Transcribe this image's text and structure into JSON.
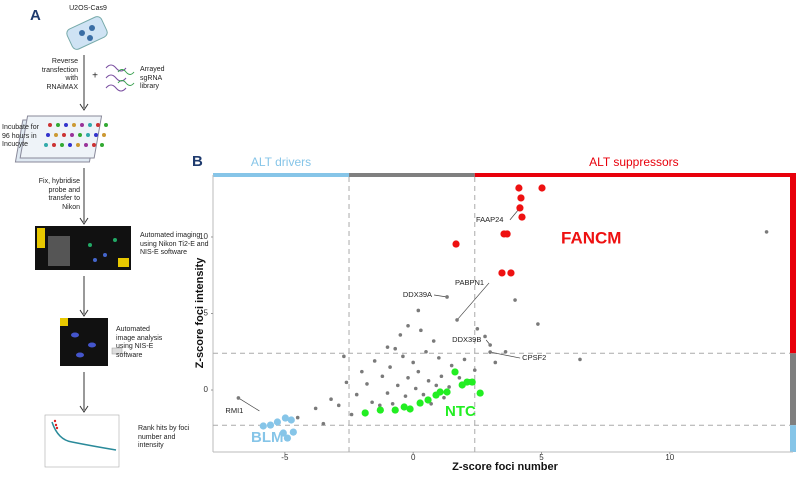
{
  "panel_a": {
    "label": "A",
    "cell_line": "U2OS-Cas9",
    "plus": "+",
    "library": "Arrayed sgRNA library",
    "steps": [
      "Reverse transfection with RNAiMAX",
      "Incubate for 96 hours in Incucyte",
      "Fix, hybridise probe and transfer to Nikon",
      "Automated imaging using Nikon Ti2-E and NIS-E software",
      "Automated image analysis using NIS-E software",
      "Rank hits by foci number and intensity"
    ]
  },
  "chart_data": {
    "type": "scatter",
    "panel_label": "B",
    "x_label": "Z-score foci number",
    "y_label": "Z-score foci intensity",
    "xlim": [
      -7.8,
      14.8
    ],
    "ylim": [
      -4.05,
      14.05
    ],
    "xticks": [
      -5,
      0,
      5,
      10
    ],
    "yticks": [
      0,
      5,
      10
    ],
    "x_thresholds": [
      -2.5,
      2.4
    ],
    "y_thresholds": [
      -2.3,
      2.4
    ],
    "regions": {
      "drivers": {
        "label": "ALT drivers",
        "color": "#86c5e8"
      },
      "neutral": {
        "color": "#7f7f7f"
      },
      "suppressors": {
        "label": "ALT suppressors",
        "color": "#e8000b"
      }
    },
    "series": [
      {
        "color": "#7a7a7a",
        "x": [
          -6.81,
          13.77,
          4.86,
          3.97,
          1.32,
          1.71,
          3.0,
          3.0,
          -0.2,
          -0.5,
          0.3,
          0.8,
          -1.0,
          -1.5,
          -2.0,
          -2.6,
          -3.2,
          -3.8,
          -2.9,
          -2.2,
          -1.8,
          -1.2,
          -0.9,
          -0.4,
          0.0,
          0.5,
          1.0,
          1.5,
          2.0,
          2.4,
          -1.6,
          -1.0,
          -0.6,
          -0.2,
          0.2,
          0.6,
          1.1,
          1.4,
          -0.8,
          -0.3,
          0.1,
          0.4,
          0.9,
          1.8,
          2.2,
          -2.4,
          -1.9,
          -1.3,
          0.7,
          1.2,
          3.2,
          3.6,
          2.8,
          -0.7,
          0.2,
          -4.5,
          -3.5,
          6.5,
          2.5,
          -2.7
        ],
        "y": [
          -0.52,
          10.33,
          4.31,
          5.88,
          6.08,
          4.58,
          2.94,
          2.48,
          4.2,
          3.6,
          3.9,
          3.2,
          2.8,
          1.9,
          1.2,
          0.5,
          -0.6,
          -1.2,
          -1.0,
          -0.3,
          0.4,
          0.9,
          1.5,
          2.2,
          1.8,
          2.5,
          2.1,
          1.6,
          2.0,
          1.3,
          -0.8,
          -0.2,
          0.3,
          0.8,
          1.2,
          0.6,
          0.9,
          0.2,
          -0.9,
          -0.4,
          0.1,
          -0.3,
          0.3,
          0.8,
          0.6,
          -1.6,
          -1.4,
          -1.0,
          -0.9,
          -0.5,
          1.8,
          2.5,
          3.5,
          2.7,
          5.2,
          -1.8,
          -2.2,
          2.0,
          4.0,
          2.2
        ]
      },
      {
        "name": "FANCM",
        "color": "#ee1111",
        "x": [
          4.12,
          5.02,
          4.2,
          4.16,
          4.24,
          3.54,
          3.66,
          1.67,
          3.46,
          3.81
        ],
        "y": [
          13.2,
          13.2,
          12.55,
          11.9,
          11.3,
          10.2,
          10.2,
          9.54,
          7.65,
          7.65
        ]
      },
      {
        "name": "NTC",
        "color": "#22ee22",
        "x": [
          -1.87,
          -1.28,
          -0.7,
          -0.35,
          -0.12,
          0.27,
          0.58,
          0.89,
          1.05,
          1.32,
          1.63,
          1.91,
          2.1,
          2.3,
          2.61
        ],
        "y": [
          -1.5,
          -1.31,
          -1.31,
          -1.11,
          -1.24,
          -0.85,
          -0.65,
          -0.33,
          -0.13,
          -0.13,
          1.18,
          0.33,
          0.52,
          0.52,
          -0.2
        ]
      },
      {
        "name": "BLM",
        "color": "#86c5e8",
        "x": [
          -5.56,
          -5.29,
          -4.98,
          -4.75,
          -5.06,
          -4.67,
          -4.9,
          -5.84
        ],
        "y": [
          -2.29,
          -2.09,
          -1.83,
          -1.96,
          -2.81,
          -2.75,
          -3.14,
          -2.35
        ]
      }
    ],
    "annotations": [
      {
        "text": "FAAP24",
        "x": 4.16,
        "y": 11.9
      },
      {
        "text": "DDX39A",
        "x": 1.32,
        "y": 6.08
      },
      {
        "text": "PABPN1",
        "x": 1.71,
        "y": 4.58
      },
      {
        "text": "DDX39B",
        "x": 3.0,
        "y": 2.94
      },
      {
        "text": "CPSF2",
        "x": 3.0,
        "y": 2.48
      },
      {
        "text": "RMI1",
        "x": -6.81,
        "y": -0.52
      }
    ]
  }
}
